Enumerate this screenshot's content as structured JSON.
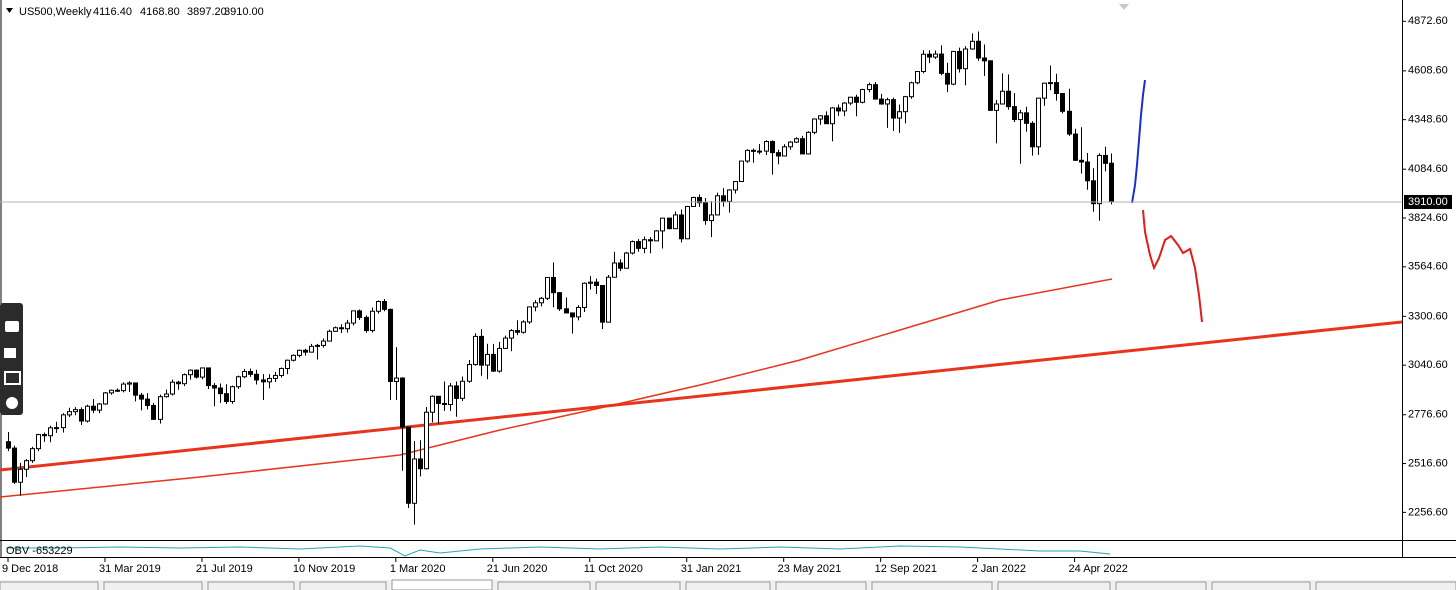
{
  "chart_data": {
    "type": "candlestick",
    "title": "US500,Weekly",
    "header_values": [
      "4116.40",
      "4168.80",
      "3897.20",
      "3910.00"
    ],
    "indicator_label": "OBV -653229",
    "categories": [
      "9 Dec 2018",
      null,
      null,
      null,
      null,
      null,
      null,
      null,
      null,
      null,
      null,
      null,
      null,
      null,
      null,
      null,
      "31 Mar 2019",
      null,
      null,
      null,
      null,
      null,
      null,
      null,
      null,
      null,
      null,
      null,
      null,
      null,
      null,
      null,
      "21 Jul 2019",
      null,
      null,
      null,
      null,
      null,
      null,
      null,
      null,
      null,
      null,
      null,
      null,
      null,
      null,
      null,
      "10 Nov 2019",
      null,
      null,
      null,
      null,
      null,
      null,
      null,
      null,
      null,
      null,
      null,
      null,
      null,
      null,
      null,
      "1 Mar 2020",
      null,
      null,
      null,
      null,
      null,
      null,
      null,
      null,
      null,
      null,
      null,
      null,
      null,
      null,
      null,
      "21 Jun 2020",
      null,
      null,
      null,
      null,
      null,
      null,
      null,
      null,
      null,
      null,
      null,
      null,
      null,
      null,
      null,
      "11 Oct 2020",
      null,
      null,
      null,
      null,
      null,
      null,
      null,
      null,
      null,
      null,
      null,
      null,
      null,
      null,
      null,
      "31 Jan 2021",
      null,
      null,
      null,
      null,
      null,
      null,
      null,
      null,
      null,
      null,
      null,
      null,
      null,
      null,
      null,
      "23 May 2021",
      null,
      null,
      null,
      null,
      null,
      null,
      null,
      null,
      null,
      null,
      null,
      null,
      null,
      null,
      null,
      "12 Sep 2021",
      null,
      null,
      null,
      null,
      null,
      null,
      null,
      null,
      null,
      null,
      null,
      null,
      null,
      null,
      null,
      "2 Jan 2022",
      null,
      null,
      null,
      null,
      null,
      null,
      null,
      null,
      null,
      null,
      null,
      null,
      null,
      null,
      null,
      "24 Apr 2022",
      null,
      null,
      null,
      null,
      null,
      null
    ],
    "open": [
      2633,
      2599,
      2417,
      2486,
      2532,
      2596,
      2671,
      2665,
      2707,
      2708,
      2776,
      2793,
      2804,
      2743,
      2822,
      2801,
      2834,
      2893,
      2907,
      2905,
      2940,
      2946,
      2881,
      2860,
      2826,
      2752,
      2873,
      2887,
      2950,
      2942,
      2990,
      3014,
      2977,
      3026,
      2932,
      2919,
      2889,
      2847,
      2926,
      2979,
      3007,
      2992,
      2962,
      2952,
      2970,
      2986,
      3023,
      3067,
      3093,
      3120,
      3110,
      3141,
      3146,
      3169,
      3221,
      3240,
      3235,
      3265,
      3330,
      3295,
      3225,
      3328,
      3380,
      3338,
      2954,
      2972,
      2711,
      2305,
      2541,
      2489,
      2790,
      2875,
      2837,
      2831,
      2930,
      2864,
      2955,
      3044,
      3194,
      3041,
      3098,
      3009,
      3130,
      3185,
      3225,
      3216,
      3271,
      3351,
      3373,
      3397,
      3508,
      3427,
      3341,
      3319,
      3298,
      3348,
      3477,
      3483,
      3465,
      3270,
      3509,
      3585,
      3557,
      3638,
      3699,
      3663,
      3709,
      3703,
      3756,
      3824,
      3768,
      3841,
      3714,
      3886,
      3934,
      3906,
      3811,
      3841,
      3943,
      3913,
      3974,
      4019,
      4128,
      4185,
      4180,
      4181,
      4232,
      4173,
      4155,
      4204,
      4229,
      4247,
      4166,
      4281,
      4352,
      4369,
      4327,
      4411,
      4395,
      4437,
      4468,
      4441,
      4509,
      4535,
      4458,
      4432,
      4455,
      4357,
      4391,
      4471,
      4545,
      4605,
      4697,
      4682,
      4698,
      4595,
      4538,
      4712,
      4620,
      4725,
      4766,
      4677,
      4662,
      4398,
      4432,
      4500,
      4418,
      4349,
      4385,
      4329,
      4204,
      4463,
      4543,
      4546,
      4488,
      4393,
      4272,
      4132,
      4123,
      4023,
      3901,
      4158,
      4116.4
    ],
    "high": [
      2685,
      2612,
      2520,
      2540,
      2606,
      2675,
      2682,
      2718,
      2739,
      2785,
      2814,
      2817,
      2816,
      2830,
      2860,
      2839,
      2898,
      2911,
      2917,
      2950,
      2955,
      2948,
      2893,
      2892,
      2840,
      2884,
      2911,
      2964,
      2958,
      2996,
      3018,
      3018,
      3028,
      3028,
      2945,
      2943,
      2939,
      2932,
      2985,
      3021,
      3022,
      3016,
      2993,
      2993,
      3004,
      3028,
      3071,
      3098,
      3124,
      3128,
      3154,
      3154,
      3183,
      3231,
      3247,
      3259,
      3282,
      3330,
      3337,
      3306,
      3347,
      3385,
      3393,
      3341,
      3137,
      2976,
      2712,
      2637,
      2641,
      2818,
      2880,
      2870,
      2954,
      2945,
      2954,
      2980,
      3068,
      3211,
      3233,
      3155,
      3154,
      3165,
      3198,
      3233,
      3280,
      3280,
      3352,
      3387,
      3404,
      3509,
      3588,
      3430,
      3402,
      3320,
      3360,
      3482,
      3515,
      3502,
      3466,
      3521,
      3645,
      3605,
      3644,
      3705,
      3712,
      3726,
      3723,
      3760,
      3826,
      3824,
      3859,
      3870,
      3889,
      3938,
      3950,
      3931,
      3915,
      3960,
      3984,
      3978,
      4021,
      4129,
      4191,
      4194,
      4218,
      4238,
      4238,
      4188,
      4218,
      4234,
      4255,
      4262,
      4287,
      4356,
      4372,
      4393,
      4415,
      4429,
      4442,
      4470,
      4482,
      4513,
      4546,
      4549,
      4486,
      4465,
      4466,
      4429,
      4475,
      4551,
      4608,
      4718,
      4718,
      4717,
      4744,
      4652,
      4713,
      4732,
      4740,
      4808,
      4818,
      4749,
      4665,
      4453,
      4595,
      4590,
      4490,
      4401,
      4417,
      4340,
      4466,
      4546,
      4637,
      4593,
      4490,
      4513,
      4300,
      4308,
      4171,
      4090,
      4169,
      4205,
      4168.8
    ],
    "low": [
      2583,
      2408,
      2346,
      2444,
      2520,
      2583,
      2632,
      2631,
      2680,
      2682,
      2764,
      2774,
      2722,
      2735,
      2785,
      2785,
      2830,
      2883,
      2898,
      2896,
      2898,
      2848,
      2800,
      2805,
      2750,
      2729,
      2868,
      2879,
      2910,
      2929,
      2964,
      2970,
      2966,
      2914,
      2822,
      2840,
      2834,
      2835,
      2914,
      2972,
      2978,
      2938,
      2855,
      2917,
      2952,
      2975,
      2993,
      3061,
      3083,
      3091,
      3108,
      3070,
      3134,
      3167,
      3219,
      3212,
      3214,
      3253,
      3281,
      3214,
      3215,
      3315,
      3328,
      2855,
      2855,
      2478,
      2280,
      2191,
      2448,
      2485,
      2736,
      2727,
      2797,
      2797,
      2766,
      2850,
      2947,
      3038,
      2984,
      2966,
      3004,
      3001,
      3128,
      3115,
      3201,
      3209,
      3260,
      3328,
      3354,
      3387,
      3349,
      3330,
      3316,
      3209,
      3279,
      3324,
      3443,
      3420,
      3233,
      3268,
      3508,
      3542,
      3557,
      3630,
      3645,
      3637,
      3636,
      3703,
      3662,
      3764,
      3766,
      3694,
      3712,
      3884,
      3884,
      3789,
      3723,
      3840,
      3885,
      3853,
      3955,
      4018,
      4118,
      4119,
      4164,
      4160,
      4056,
      4111,
      4153,
      4188,
      4224,
      4165,
      4164,
      4271,
      4321,
      4326,
      4233,
      4369,
      4367,
      4425,
      4367,
      4435,
      4493,
      4456,
      4428,
      4305,
      4288,
      4278,
      4329,
      4460,
      4537,
      4595,
      4650,
      4672,
      4585,
      4495,
      4532,
      4600,
      4531,
      4720,
      4662,
      4582,
      4395,
      4222,
      4431,
      4401,
      4336,
      4114,
      4284,
      4157,
      4161,
      4422,
      4506,
      4450,
      4382,
      4262,
      4128,
      4062,
      3975,
      3858,
      3810,
      4073,
      3897.2
    ],
    "close": [
      2599,
      2417,
      2486,
      2532,
      2596,
      2671,
      2665,
      2707,
      2708,
      2776,
      2793,
      2804,
      2743,
      2822,
      2801,
      2834,
      2893,
      2907,
      2905,
      2940,
      2946,
      2881,
      2860,
      2826,
      2752,
      2873,
      2887,
      2950,
      2942,
      2990,
      3014,
      2977,
      3026,
      2932,
      2919,
      2889,
      2847,
      2926,
      2979,
      3007,
      2992,
      2962,
      2952,
      2970,
      2986,
      3023,
      3067,
      3093,
      3120,
      3110,
      3141,
      3146,
      3169,
      3221,
      3240,
      3235,
      3265,
      3330,
      3295,
      3225,
      3328,
      3380,
      3338,
      2954,
      2972,
      2711,
      2305,
      2541,
      2489,
      2790,
      2875,
      2837,
      2831,
      2930,
      2864,
      2955,
      3044,
      3194,
      3041,
      3098,
      3009,
      3130,
      3185,
      3225,
      3216,
      3271,
      3351,
      3373,
      3397,
      3508,
      3427,
      3341,
      3319,
      3298,
      3348,
      3477,
      3483,
      3465,
      3270,
      3509,
      3585,
      3557,
      3638,
      3699,
      3663,
      3709,
      3703,
      3756,
      3824,
      3768,
      3841,
      3714,
      3886,
      3934,
      3906,
      3811,
      3841,
      3943,
      3913,
      3974,
      4019,
      4128,
      4185,
      4180,
      4181,
      4232,
      4173,
      4155,
      4204,
      4229,
      4247,
      4166,
      4281,
      4352,
      4369,
      4327,
      4411,
      4395,
      4437,
      4468,
      4441,
      4509,
      4535,
      4458,
      4432,
      4455,
      4357,
      4391,
      4471,
      4545,
      4605,
      4697,
      4682,
      4698,
      4595,
      4538,
      4712,
      4620,
      4725,
      4766,
      4677,
      4662,
      4398,
      4432,
      4500,
      4418,
      4349,
      4385,
      4329,
      4204,
      4463,
      4543,
      4546,
      4488,
      4393,
      4272,
      4132,
      4123,
      4023,
      3901,
      4158,
      4116,
      3910
    ],
    "ylim": [
      2120,
      4970
    ],
    "yticks": [
      {
        "value": 4872.6,
        "label": "4872.60"
      },
      {
        "value": 4608.6,
        "label": "4608.60"
      },
      {
        "value": 4348.6,
        "label": "4348.60"
      },
      {
        "value": 4084.6,
        "label": "4084.60"
      },
      {
        "value": 3824.6,
        "label": "3824.60"
      },
      {
        "value": 3564.6,
        "label": "3564.60"
      },
      {
        "value": 3300.6,
        "label": "3300.60"
      },
      {
        "value": 3040.6,
        "label": "3040.60"
      },
      {
        "value": 2776.6,
        "label": "2776.60"
      },
      {
        "value": 2516.6,
        "label": "2516.60"
      },
      {
        "value": 2256.6,
        "label": "2256.60"
      }
    ],
    "up_color": "#ffffff",
    "down_color": "#000000",
    "grid": false
  }
}
